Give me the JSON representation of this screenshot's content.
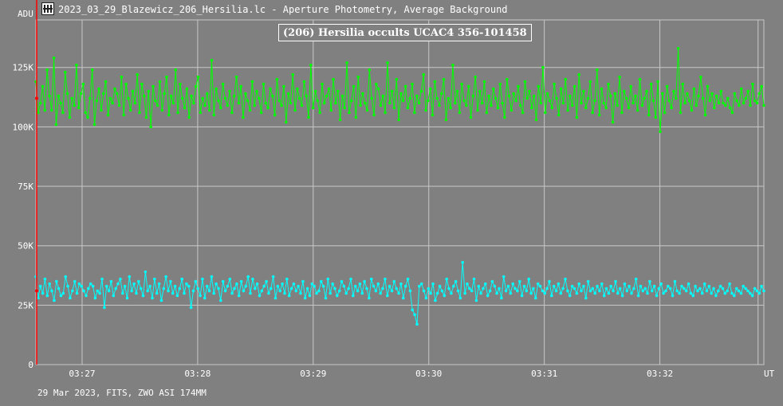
{
  "window": {
    "title": "2023_03_29_Blazewicz_206_Hersilia.lc - Aperture Photometry, Average Background"
  },
  "footer": {
    "info": "29 Mar 2023, FITS, ZWO ASI 174MM"
  },
  "icons": {
    "app": "film-strip-icon"
  },
  "colors": {
    "background": "#808080",
    "grid": "#c8c8c8",
    "target": "#00ff00",
    "comparison": "#00ffff",
    "cursor": "#ff0000"
  },
  "chart_data": {
    "type": "line",
    "title": "(206) Hersilia occults UCAC4 356-101458",
    "ylabel": "ADU",
    "xlabel": "UT",
    "ylim": [
      0,
      145000
    ],
    "yticks": [
      {
        "value": 0,
        "label": "0"
      },
      {
        "value": 25000,
        "label": "25K"
      },
      {
        "value": 50000,
        "label": "50K"
      },
      {
        "value": 75000,
        "label": "75K"
      },
      {
        "value": 100000,
        "label": "100K"
      },
      {
        "value": 125000,
        "label": "125K"
      }
    ],
    "xlim": [
      26.6,
      32.9
    ],
    "xticks": [
      {
        "value": 27,
        "label": "03:27"
      },
      {
        "value": 28,
        "label": "03:28"
      },
      {
        "value": 29,
        "label": "03:29"
      },
      {
        "value": 30,
        "label": "03:30"
      },
      {
        "value": 31,
        "label": "03:31"
      },
      {
        "value": 32,
        "label": "03:32"
      }
    ],
    "grid": true,
    "marker_x": 26.6,
    "end_marker_x": 32.85,
    "series": [
      {
        "role": "target",
        "color": "#00ff00",
        "values": [
          119000,
          106000,
          110000,
          117000,
          107000,
          124000,
          113000,
          107000,
          129000,
          101000,
          113000,
          110000,
          106000,
          123000,
          114000,
          104000,
          112000,
          109000,
          126000,
          108000,
          114000,
          118000,
          106000,
          104000,
          112000,
          124000,
          101000,
          111000,
          116000,
          107000,
          114000,
          119000,
          105000,
          112000,
          110000,
          116000,
          114000,
          109000,
          121000,
          105000,
          118000,
          112000,
          107000,
          115000,
          110000,
          122000,
          106000,
          118000,
          113000,
          104000,
          115000,
          100000,
          117000,
          111000,
          109000,
          119000,
          107000,
          114000,
          121000,
          105000,
          113000,
          110000,
          124000,
          106000,
          118000,
          112000,
          108000,
          116000,
          104000,
          113000,
          110000,
          117000,
          121000,
          106000,
          112000,
          109000,
          114000,
          107000,
          128000,
          105000,
          116000,
          111000,
          108000,
          118000,
          112000,
          109000,
          115000,
          106000,
          113000,
          121000,
          110000,
          117000,
          104000,
          114000,
          111000,
          107000,
          119000,
          109000,
          115000,
          112000,
          106000,
          118000,
          110000,
          108000,
          116000,
          113000,
          105000,
          120000,
          111000,
          109000,
          117000,
          102000,
          114000,
          110000,
          122000,
          107000,
          116000,
          112000,
          109000,
          119000,
          113000,
          104000,
          126000,
          108000,
          115000,
          111000,
          106000,
          118000,
          110000,
          113000,
          116000,
          107000,
          120000,
          110000,
          115000,
          103000,
          113000,
          108000,
          127000,
          106000,
          111000,
          117000,
          104000,
          121000,
          109000,
          114000,
          110000,
          107000,
          124000,
          112000,
          105000,
          118000,
          116000,
          109000,
          113000,
          106000,
          127000,
          110000,
          115000,
          108000,
          120000,
          103000,
          114000,
          111000,
          117000,
          108000,
          112000,
          118000,
          106000,
          113000,
          110000,
          115000,
          122000,
          107000,
          111000,
          116000,
          105000,
          119000,
          112000,
          109000,
          114000,
          120000,
          103000,
          112000,
          108000,
          126000,
          110000,
          115000,
          106000,
          118000,
          111000,
          109000,
          117000,
          104000,
          113000,
          121000,
          107000,
          115000,
          110000,
          119000,
          106000,
          113000,
          109000,
          116000,
          112000,
          108000,
          118000,
          110000,
          104000,
          120000,
          113000,
          107000,
          114000,
          111000,
          117000,
          109000,
          106000,
          119000,
          112000,
          115000,
          108000,
          113000,
          103000,
          117000,
          110000,
          125000,
          106000,
          114000,
          111000,
          108000,
          118000,
          112000,
          105000,
          116000,
          110000,
          120000,
          107000,
          113000,
          109000,
          117000,
          104000,
          122000,
          110000,
          115000,
          108000,
          112000,
          119000,
          106000,
          111000,
          124000,
          105000,
          116000,
          110000,
          108000,
          118000,
          113000,
          102000,
          114000,
          109000,
          121000,
          106000,
          115000,
          112000,
          108000,
          117000,
          110000,
          113000,
          107000,
          120000,
          109000,
          112000,
          115000,
          105000,
          118000,
          111000,
          104000,
          119000,
          109000,
          114000,
          106000,
          117000,
          111000,
          108000,
          115000,
          112000,
          109000,
          106000,
          118000,
          110000,
          114000,
          111000,
          107000,
          116000,
          109000,
          113000,
          121000,
          112000,
          105000,
          117000,
          111000,
          114000,
          108000,
          113000,
          110000,
          115000,
          110000,
          109000,
          112000,
          108000,
          106000,
          114000,
          111000,
          109000,
          116000,
          110000,
          112000,
          115000,
          109000,
          118000,
          111000,
          110000,
          114000,
          117000,
          109000
        ],
        "extremes": {
          "peak_near_32_15": 133000,
          "low_near_32_0": 98000
        }
      },
      {
        "role": "comparison",
        "color": "#00ffff",
        "values": [
          37000,
          28000,
          33000,
          30000,
          36000,
          29000,
          34000,
          31000,
          27000,
          35000,
          32000,
          29000,
          30000,
          37000,
          33000,
          28000,
          31000,
          35000,
          30000,
          34000,
          33000,
          31000,
          29000,
          32000,
          34000,
          33000,
          28000,
          31000,
          30000,
          36000,
          24000,
          33000,
          31000,
          35000,
          29000,
          32000,
          34000,
          36000,
          30000,
          33000,
          28000,
          37000,
          31000,
          34000,
          30000,
          35000,
          32000,
          29000,
          39000,
          31000,
          33000,
          28000,
          36000,
          30000,
          34000,
          27000,
          32000,
          37000,
          31000,
          35000,
          30000,
          33000,
          29000,
          32000,
          36000,
          30000,
          34000,
          33000,
          24000,
          31000,
          35000,
          32000,
          29000,
          36000,
          28000,
          33000,
          31000,
          37000,
          30000,
          34000,
          32000,
          27000,
          35000,
          31000,
          33000,
          36000,
          30000,
          32000,
          34000,
          29000,
          35000,
          31000,
          33000,
          37000,
          30000,
          36000,
          32000,
          34000,
          29000,
          31000,
          33000,
          35000,
          30000,
          32000,
          37000,
          28000,
          33000,
          31000,
          34000,
          30000,
          36000,
          29000,
          32000,
          34000,
          31000,
          33000,
          30000,
          35000,
          28000,
          32000,
          29000,
          34000,
          33000,
          30000,
          31000,
          35000,
          33000,
          28000,
          36000,
          30000,
          34000,
          32000,
          29000,
          31000,
          35000,
          33000,
          30000,
          32000,
          36000,
          29000,
          33000,
          31000,
          34000,
          30000,
          35000,
          32000,
          28000,
          36000,
          33000,
          31000,
          34000,
          30000,
          32000,
          36000,
          29000,
          33000,
          31000,
          35000,
          32000,
          30000,
          34000,
          28000,
          33000,
          36000,
          31000,
          32000,
          35000,
          30000,
          33000,
          34000,
          31000,
          28000,
          32000,
          30000,
          34000,
          27000,
          30000,
          33000,
          31000,
          29000,
          36000,
          32000,
          30000,
          33000,
          35000,
          31000,
          28000,
          33000,
          30000,
          34000,
          32000,
          31000,
          36000,
          27000,
          33000,
          30000,
          32000,
          34000,
          29000,
          31000,
          35000,
          33000,
          30000,
          32000,
          28000,
          37000,
          31000,
          33000,
          30000,
          34000,
          32000,
          31000,
          35000,
          29000,
          33000,
          31000,
          36000,
          30000,
          32000,
          28000,
          34000,
          33000,
          31000,
          30000,
          32000,
          35000,
          29000,
          33000,
          31000,
          34000,
          30000,
          32000,
          36000,
          31000,
          29000,
          33000,
          32000,
          30000,
          34000,
          31000,
          33000,
          28000,
          35000,
          31000,
          32000,
          30000,
          33000,
          31000,
          34000,
          29000,
          32000,
          30000,
          33000,
          31000,
          35000,
          30000,
          32000,
          29000,
          34000,
          31000,
          33000,
          30000,
          32000,
          36000,
          29000,
          33000,
          31000,
          32000,
          30000,
          35000,
          31000,
          33000,
          29000,
          32000,
          34000,
          30000,
          31000,
          33000,
          32000,
          29000,
          35000,
          31000,
          30000,
          33000,
          32000,
          31000,
          34000,
          30000,
          29000,
          33000,
          31000,
          32000,
          30000,
          34000,
          31000,
          33000,
          30000,
          32000,
          29000,
          31000,
          33000,
          32000,
          30000,
          31000,
          34000,
          30000,
          29000,
          32000,
          31000,
          30000,
          33000,
          32000,
          31000,
          30000,
          29000,
          32000,
          31000,
          30000,
          33000,
          31000
        ],
        "extremes": {
          "low_near_29_9": 17000,
          "peak_near_30_3": 43000
        }
      }
    ]
  }
}
